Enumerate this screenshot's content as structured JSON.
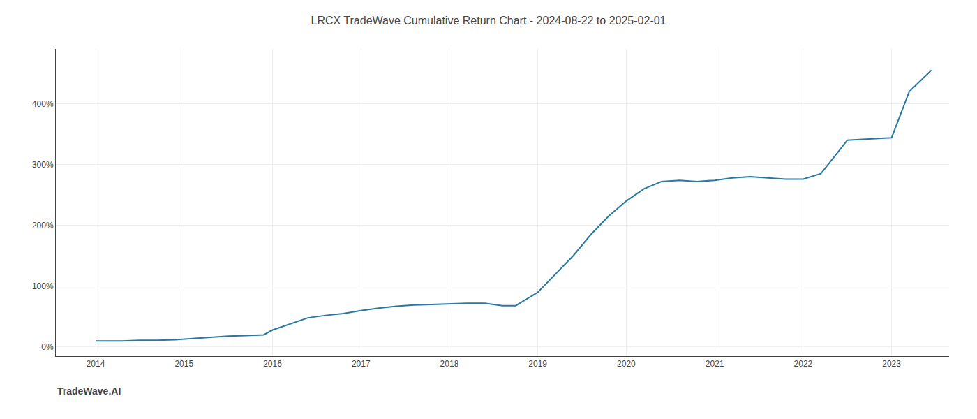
{
  "chart_data": {
    "type": "line",
    "title": "LRCX TradeWave Cumulative Return Chart - 2024-08-22 to 2025-02-01",
    "annotations": [
      "TradeWave.AI"
    ],
    "color": "#2878a0",
    "grid": true,
    "x": [
      2014.0,
      2014.15,
      2014.3,
      2014.5,
      2014.7,
      2014.9,
      2015.0,
      2015.2,
      2015.5,
      2015.7,
      2015.9,
      2016.0,
      2016.2,
      2016.4,
      2016.6,
      2016.8,
      2017.0,
      2017.2,
      2017.4,
      2017.6,
      2017.8,
      2018.0,
      2018.2,
      2018.4,
      2018.6,
      2018.75,
      2019.0,
      2019.2,
      2019.4,
      2019.6,
      2019.8,
      2020.0,
      2020.2,
      2020.4,
      2020.6,
      2020.8,
      2021.0,
      2021.2,
      2021.4,
      2021.6,
      2021.8,
      2022.0,
      2022.2,
      2022.5,
      2022.8,
      2023.0,
      2023.2,
      2023.45
    ],
    "values": [
      10,
      10,
      10,
      11,
      11,
      12,
      13,
      15,
      18,
      19,
      20,
      28,
      38,
      48,
      52,
      55,
      60,
      64,
      67,
      69,
      70,
      71,
      72,
      72,
      68,
      68,
      90,
      120,
      150,
      185,
      215,
      240,
      260,
      272,
      274,
      272,
      274,
      278,
      280,
      278,
      276,
      276,
      285,
      340,
      342,
      344,
      420,
      455
    ],
    "xlim": [
      2013.55,
      2023.65
    ],
    "ylim": [
      -15,
      490
    ],
    "xticks": [
      2014,
      2015,
      2016,
      2017,
      2018,
      2019,
      2020,
      2021,
      2022,
      2023
    ],
    "yticks": [
      {
        "value": 0,
        "label": "0%"
      },
      {
        "value": 100,
        "label": "100%"
      },
      {
        "value": 200,
        "label": "200%"
      },
      {
        "value": 300,
        "label": "300%"
      },
      {
        "value": 400,
        "label": "400%"
      }
    ]
  }
}
